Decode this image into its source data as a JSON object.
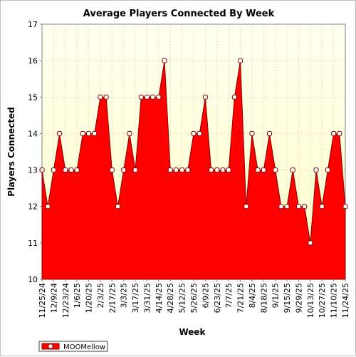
{
  "chart_data": {
    "type": "area",
    "title": "Average Players Connected By Week",
    "xlabel": "Week",
    "ylabel": "Players Connected",
    "ylim": [
      10,
      17
    ],
    "yticks": [
      10,
      11,
      12,
      13,
      14,
      15,
      16,
      17
    ],
    "grid": true,
    "legend": "bottom-left",
    "colors": {
      "fill": "#ff0000",
      "line": "#8b0000",
      "marker_fill": "#ffffff",
      "plot_bg_top": "#fffff0",
      "plot_bg_bottom": "#ffffc8"
    },
    "x_tick_labels": [
      "11/25/24",
      "12/9/24",
      "12/23/24",
      "1/6/25",
      "1/20/25",
      "2/3/25",
      "2/17/25",
      "3/3/25",
      "3/17/25",
      "3/31/25",
      "4/14/25",
      "4/28/25",
      "5/12/25",
      "5/26/25",
      "6/9/25",
      "6/23/25",
      "7/7/25",
      "7/21/25",
      "8/4/25",
      "8/18/25",
      "9/1/25",
      "9/15/25",
      "9/29/25",
      "10/13/25",
      "10/27/25",
      "11/10/25",
      "11/24/25"
    ],
    "series": [
      {
        "name": "MOOMellow",
        "x": [
          "11/25/24",
          "12/2/24",
          "12/9/24",
          "12/16/24",
          "12/23/24",
          "12/30/24",
          "1/6/25",
          "1/13/25",
          "1/20/25",
          "1/27/25",
          "2/3/25",
          "2/10/25",
          "2/17/25",
          "2/24/25",
          "3/3/25",
          "3/10/25",
          "3/17/25",
          "3/24/25",
          "3/31/25",
          "4/7/25",
          "4/14/25",
          "4/21/25",
          "4/28/25",
          "5/5/25",
          "5/12/25",
          "5/19/25",
          "5/26/25",
          "6/2/25",
          "6/9/25",
          "6/16/25",
          "6/23/25",
          "6/30/25",
          "7/7/25",
          "7/14/25",
          "7/21/25",
          "7/28/25",
          "8/4/25",
          "8/11/25",
          "8/18/25",
          "8/25/25",
          "9/1/25",
          "9/8/25",
          "9/15/25",
          "9/22/25",
          "9/29/25",
          "10/6/25",
          "10/13/25",
          "10/20/25",
          "10/27/25",
          "11/3/25",
          "11/10/25",
          "11/17/25",
          "11/24/25"
        ],
        "values": [
          13,
          12,
          13,
          14,
          13,
          13,
          13,
          14,
          14,
          14,
          15,
          15,
          13,
          12,
          13,
          14,
          13,
          15,
          15,
          15,
          15,
          16,
          13,
          13,
          13,
          13,
          14,
          14,
          15,
          13,
          13,
          13,
          13,
          15,
          16,
          12,
          14,
          13,
          13,
          14,
          13,
          12,
          12,
          13,
          12,
          12,
          11,
          13,
          12,
          13,
          14,
          14,
          12
        ]
      }
    ]
  }
}
